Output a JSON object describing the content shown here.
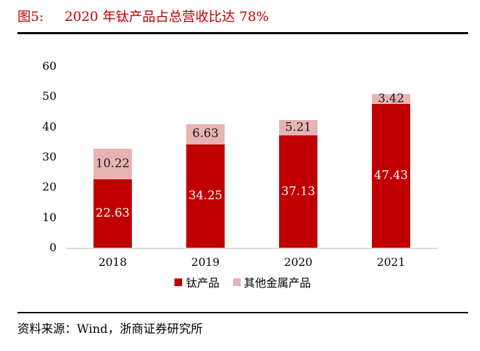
{
  "figure": {
    "label": "图5:",
    "title": "2020 年钛产品占总营收比达 78%",
    "source_label": "资料来源：Wind，浙商证券研究所",
    "accent_color": "#c00000"
  },
  "chart_data": {
    "type": "bar",
    "stacked": true,
    "title": "2020 年钛产品占总营收比达 78%",
    "categories": [
      "2018",
      "2019",
      "2020",
      "2021"
    ],
    "series": [
      {
        "name": "钛产品",
        "values": [
          22.63,
          34.25,
          37.13,
          47.43
        ],
        "color": "#c00000",
        "label_color": "#ffffff"
      },
      {
        "name": "其他金属产品",
        "values": [
          10.22,
          6.63,
          5.21,
          3.42
        ],
        "color": "#e7b3b3",
        "label_color": "#1a1a1a"
      }
    ],
    "xlabel": "",
    "ylabel": "",
    "ylim": [
      0,
      60
    ],
    "yticks": [
      0,
      10,
      20,
      30,
      40,
      50,
      60
    ],
    "value_labels_decimals": 2,
    "grid": false,
    "legend_position": "bottom",
    "axis_line_color": "#d9d9d9"
  }
}
